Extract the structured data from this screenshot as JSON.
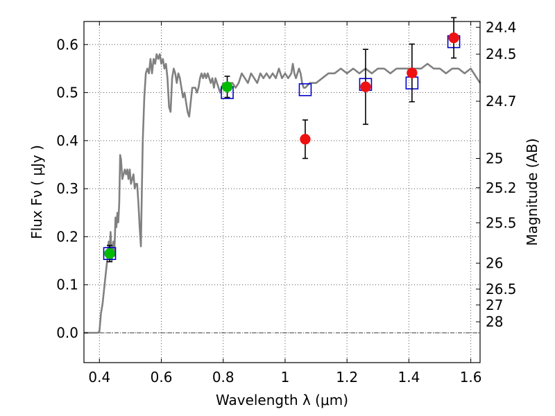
{
  "chart_data": {
    "type": "scatter",
    "xlabel": "Wavelength  λ (μm)",
    "ylabel": "Flux  Fν  ( μJy )",
    "y2label": "Magnitude (AB)",
    "xlim": [
      0.35,
      1.63
    ],
    "ylim": [
      -0.062,
      0.648
    ],
    "grid": true,
    "x_ticks": [
      0.4,
      0.6,
      0.8,
      1.0,
      1.2,
      1.4,
      1.6
    ],
    "x_tick_labels": [
      "0.4",
      "0.6",
      "0.8",
      "1",
      "1.2",
      "1.4",
      "1.6"
    ],
    "y_ticks": [
      0.0,
      0.1,
      0.2,
      0.3,
      0.4,
      0.5,
      0.6
    ],
    "y_tick_labels": [
      "0.0",
      "0.1",
      "0.2",
      "0.3",
      "0.4",
      "0.5",
      "0.6"
    ],
    "mag_ticks": [
      {
        "label": "24.4",
        "flux": 0.636
      },
      {
        "label": "24.5",
        "flux": 0.58
      },
      {
        "label": "24.7",
        "flux": 0.482
      },
      {
        "label": "25",
        "flux": 0.363
      },
      {
        "label": "25.2",
        "flux": 0.302
      },
      {
        "label": "25.5",
        "flux": 0.229
      },
      {
        "label": "26",
        "flux": 0.145
      },
      {
        "label": "26.5",
        "flux": 0.091
      },
      {
        "label": "27",
        "flux": 0.058
      },
      {
        "label": "28",
        "flux": 0.023
      }
    ],
    "zero_line": 0.0,
    "colors": {
      "model": "#808080",
      "green": "#00bb00",
      "red": "#ee1111",
      "square": "#0000cc",
      "errorbar": "#000000",
      "grid": "#555555"
    },
    "series": [
      {
        "kind": "line",
        "points": [
          [
            0.35,
            0.0
          ],
          [
            0.395,
            0.0
          ],
          [
            0.4,
            0.003
          ],
          [
            0.405,
            0.04
          ],
          [
            0.41,
            0.06
          ],
          [
            0.415,
            0.09
          ],
          [
            0.42,
            0.12
          ],
          [
            0.425,
            0.15
          ],
          [
            0.43,
            0.19
          ],
          [
            0.433,
            0.165
          ],
          [
            0.436,
            0.21
          ],
          [
            0.44,
            0.15
          ],
          [
            0.445,
            0.19
          ],
          [
            0.448,
            0.16
          ],
          [
            0.452,
            0.24
          ],
          [
            0.455,
            0.22
          ],
          [
            0.458,
            0.25
          ],
          [
            0.461,
            0.23
          ],
          [
            0.464,
            0.27
          ],
          [
            0.467,
            0.37
          ],
          [
            0.47,
            0.36
          ],
          [
            0.474,
            0.32
          ],
          [
            0.478,
            0.33
          ],
          [
            0.482,
            0.34
          ],
          [
            0.486,
            0.33
          ],
          [
            0.49,
            0.34
          ],
          [
            0.494,
            0.32
          ],
          [
            0.498,
            0.34
          ],
          [
            0.502,
            0.31
          ],
          [
            0.506,
            0.32
          ],
          [
            0.51,
            0.33
          ],
          [
            0.514,
            0.3
          ],
          [
            0.518,
            0.31
          ],
          [
            0.522,
            0.31
          ],
          [
            0.526,
            0.27
          ],
          [
            0.53,
            0.22
          ],
          [
            0.534,
            0.18
          ],
          [
            0.537,
            0.29
          ],
          [
            0.54,
            0.4
          ],
          [
            0.545,
            0.49
          ],
          [
            0.55,
            0.54
          ],
          [
            0.555,
            0.55
          ],
          [
            0.56,
            0.54
          ],
          [
            0.565,
            0.57
          ],
          [
            0.57,
            0.54
          ],
          [
            0.575,
            0.57
          ],
          [
            0.58,
            0.56
          ],
          [
            0.585,
            0.58
          ],
          [
            0.59,
            0.57
          ],
          [
            0.595,
            0.58
          ],
          [
            0.6,
            0.56
          ],
          [
            0.605,
            0.57
          ],
          [
            0.61,
            0.55
          ],
          [
            0.615,
            0.56
          ],
          [
            0.62,
            0.53
          ],
          [
            0.625,
            0.47
          ],
          [
            0.63,
            0.46
          ],
          [
            0.635,
            0.53
          ],
          [
            0.64,
            0.55
          ],
          [
            0.645,
            0.54
          ],
          [
            0.65,
            0.52
          ],
          [
            0.655,
            0.54
          ],
          [
            0.66,
            0.53
          ],
          [
            0.665,
            0.51
          ],
          [
            0.67,
            0.49
          ],
          [
            0.675,
            0.5
          ],
          [
            0.68,
            0.48
          ],
          [
            0.685,
            0.46
          ],
          [
            0.69,
            0.45
          ],
          [
            0.695,
            0.48
          ],
          [
            0.7,
            0.51
          ],
          [
            0.705,
            0.51
          ],
          [
            0.71,
            0.51
          ],
          [
            0.715,
            0.5
          ],
          [
            0.72,
            0.51
          ],
          [
            0.725,
            0.53
          ],
          [
            0.73,
            0.54
          ],
          [
            0.735,
            0.53
          ],
          [
            0.74,
            0.54
          ],
          [
            0.745,
            0.53
          ],
          [
            0.75,
            0.54
          ],
          [
            0.755,
            0.53
          ],
          [
            0.76,
            0.52
          ],
          [
            0.765,
            0.53
          ],
          [
            0.77,
            0.51
          ],
          [
            0.775,
            0.53
          ],
          [
            0.78,
            0.52
          ],
          [
            0.785,
            0.51
          ],
          [
            0.79,
            0.5
          ],
          [
            0.795,
            0.51
          ],
          [
            0.8,
            0.52
          ],
          [
            0.81,
            0.51
          ],
          [
            0.82,
            0.52
          ],
          [
            0.83,
            0.52
          ],
          [
            0.84,
            0.51
          ],
          [
            0.85,
            0.52
          ],
          [
            0.86,
            0.54
          ],
          [
            0.87,
            0.53
          ],
          [
            0.88,
            0.52
          ],
          [
            0.89,
            0.54
          ],
          [
            0.9,
            0.53
          ],
          [
            0.91,
            0.52
          ],
          [
            0.92,
            0.54
          ],
          [
            0.93,
            0.53
          ],
          [
            0.94,
            0.54
          ],
          [
            0.95,
            0.53
          ],
          [
            0.96,
            0.54
          ],
          [
            0.97,
            0.53
          ],
          [
            0.98,
            0.55
          ],
          [
            0.99,
            0.53
          ],
          [
            1.0,
            0.54
          ],
          [
            1.01,
            0.53
          ],
          [
            1.02,
            0.54
          ],
          [
            1.025,
            0.56
          ],
          [
            1.03,
            0.54
          ],
          [
            1.035,
            0.53
          ],
          [
            1.04,
            0.54
          ],
          [
            1.045,
            0.55
          ],
          [
            1.05,
            0.54
          ],
          [
            1.055,
            0.52
          ],
          [
            1.06,
            0.51
          ],
          [
            1.065,
            0.51
          ],
          [
            1.08,
            0.52
          ],
          [
            1.1,
            0.52
          ],
          [
            1.12,
            0.53
          ],
          [
            1.14,
            0.54
          ],
          [
            1.16,
            0.54
          ],
          [
            1.18,
            0.55
          ],
          [
            1.2,
            0.54
          ],
          [
            1.22,
            0.55
          ],
          [
            1.24,
            0.54
          ],
          [
            1.26,
            0.55
          ],
          [
            1.28,
            0.54
          ],
          [
            1.3,
            0.55
          ],
          [
            1.32,
            0.55
          ],
          [
            1.34,
            0.54
          ],
          [
            1.36,
            0.55
          ],
          [
            1.38,
            0.55
          ],
          [
            1.4,
            0.55
          ],
          [
            1.42,
            0.55
          ],
          [
            1.44,
            0.55
          ],
          [
            1.46,
            0.56
          ],
          [
            1.48,
            0.55
          ],
          [
            1.5,
            0.55
          ],
          [
            1.52,
            0.54
          ],
          [
            1.54,
            0.55
          ],
          [
            1.56,
            0.55
          ],
          [
            1.58,
            0.54
          ],
          [
            1.6,
            0.55
          ],
          [
            1.62,
            0.53
          ],
          [
            1.63,
            0.52
          ]
        ]
      },
      {
        "kind": "squares",
        "points": [
          {
            "x": 0.433,
            "y": 0.165
          },
          {
            "x": 0.813,
            "y": 0.5
          },
          {
            "x": 1.065,
            "y": 0.506
          },
          {
            "x": 1.26,
            "y": 0.517
          },
          {
            "x": 1.41,
            "y": 0.52
          },
          {
            "x": 1.545,
            "y": 0.606
          }
        ]
      },
      {
        "kind": "points",
        "points": [
          {
            "x": 0.433,
            "y": 0.165,
            "err": 0.017,
            "color": "green"
          },
          {
            "x": 0.813,
            "y": 0.512,
            "err": 0.022,
            "color": "green"
          },
          {
            "x": 1.065,
            "y": 0.403,
            "err": 0.04,
            "color": "red"
          },
          {
            "x": 1.26,
            "y": 0.512,
            "err": 0.078,
            "color": "red"
          },
          {
            "x": 1.41,
            "y": 0.541,
            "err": 0.06,
            "color": "red"
          },
          {
            "x": 1.545,
            "y": 0.614,
            "err": 0.042,
            "color": "red"
          }
        ]
      }
    ]
  }
}
